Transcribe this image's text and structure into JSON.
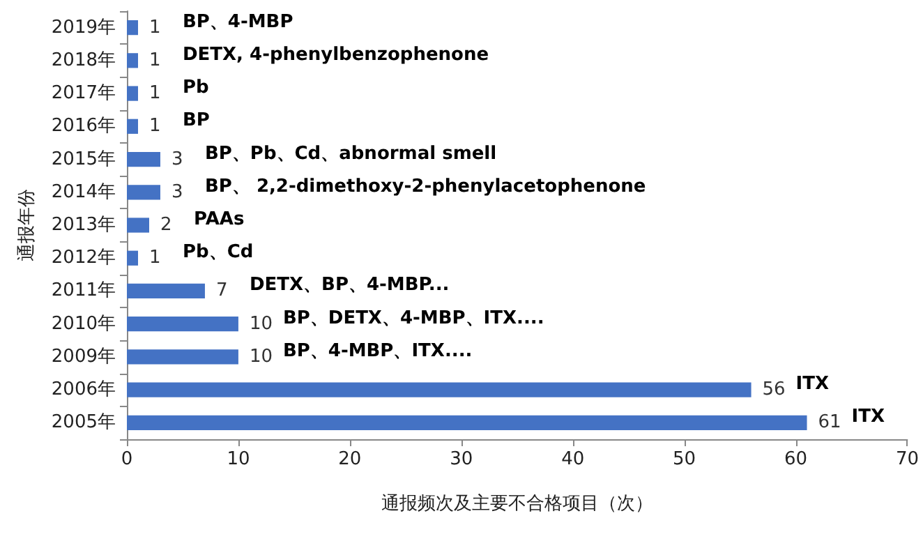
{
  "chart_data": {
    "type": "bar",
    "orientation": "horizontal",
    "categories": [
      "2019年",
      "2018年",
      "2017年",
      "2016年",
      "2015年",
      "2014年",
      "2013年",
      "2012年",
      "2011年",
      "2010年",
      "2009年",
      "2006年",
      "2005年"
    ],
    "values": [
      1,
      1,
      1,
      1,
      3,
      3,
      2,
      1,
      7,
      10,
      10,
      56,
      61
    ],
    "color": "#4472c4",
    "data_labels": true,
    "xlim": [
      0,
      70
    ],
    "xticks": [
      0,
      10,
      20,
      30,
      40,
      50,
      60,
      70
    ],
    "grid": false,
    "xlabel": "通报频次及主要不合格项目（次）",
    "ylabel": "通报年份",
    "annotations": [
      "BP、4-MBP",
      "DETX, 4-phenylbenzophenone",
      "Pb",
      "BP",
      "BP、Pb、Cd、abnormal smell",
      "BP、 2,2-dimethoxy-2-phenylacetophenone",
      "PAAs",
      "Pb、Cd",
      "DETX、BP、4-MBP...",
      "BP、DETX、4-MBP、ITX....",
      "BP、4-MBP、ITX....",
      "ITX",
      "ITX"
    ]
  }
}
